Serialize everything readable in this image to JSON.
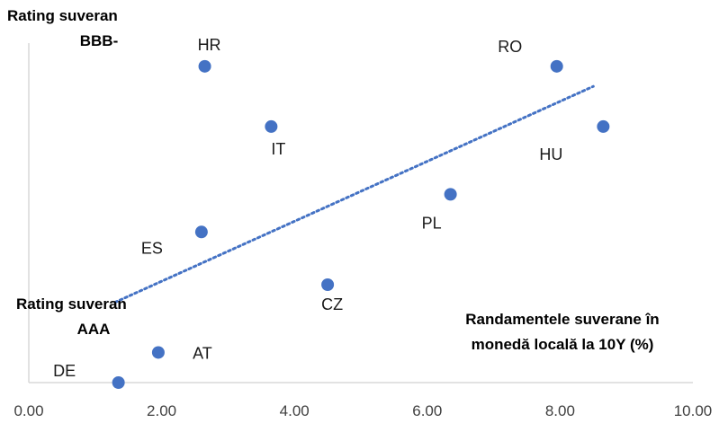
{
  "chart_data": {
    "type": "scatter",
    "xlim": [
      0,
      10
    ],
    "x_ticks": [
      "0.00",
      "2.00",
      "4.00",
      "6.00",
      "8.00",
      "10.00"
    ],
    "points": [
      {
        "label": "HR",
        "x": 2.65,
        "y": 6.3
      },
      {
        "label": "IT",
        "x": 3.65,
        "y": 5.1
      },
      {
        "label": "RO",
        "x": 7.95,
        "y": 6.3
      },
      {
        "label": "HU",
        "x": 8.65,
        "y": 5.1
      },
      {
        "label": "PL",
        "x": 6.35,
        "y": 3.75
      },
      {
        "label": "ES",
        "x": 2.6,
        "y": 3.0
      },
      {
        "label": "CZ",
        "x": 4.5,
        "y": 1.95
      },
      {
        "label": "AT",
        "x": 1.95,
        "y": 0.6
      },
      {
        "label": "DE",
        "x": 1.35,
        "y": 0.0
      }
    ],
    "trendline": {
      "style": "dotted",
      "from": {
        "x": 1.3,
        "y": 1.6
      },
      "to": {
        "x": 8.5,
        "y": 5.9
      }
    },
    "y_top_label": [
      "Rating suveran",
      "BBB-"
    ],
    "y_bottom_label": [
      "Rating suveran",
      "AAA"
    ],
    "xlabel": [
      "Randamentele suverane în",
      "monedă locală la 10Y (%)"
    ],
    "grid": false,
    "colors": {
      "marker": "#4472C4",
      "trend": "#4472C4",
      "axis": "#d9d9d9"
    }
  }
}
